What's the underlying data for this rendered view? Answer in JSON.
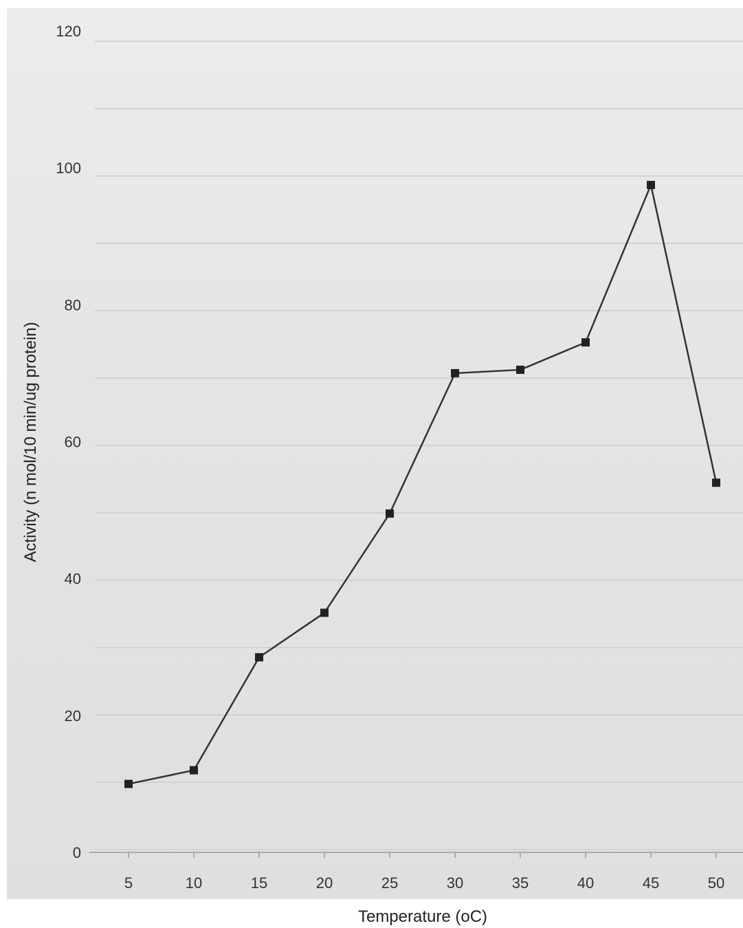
{
  "chart_data": {
    "type": "line",
    "title": "",
    "xlabel": "Temperature (oC)",
    "ylabel": "Activity (n mol/10 min/ug protein)",
    "categories": [
      "5",
      "10",
      "15",
      "20",
      "25",
      "30",
      "35",
      "40",
      "45",
      "50"
    ],
    "series": [
      {
        "values": [
          10,
          12,
          28.5,
          35,
          49.5,
          70,
          70.5,
          74.5,
          97.5,
          54
        ]
      }
    ],
    "ylim": [
      0,
      120
    ],
    "yticks": [
      0,
      20,
      40,
      60,
      80,
      100,
      120
    ],
    "grid": false,
    "legend": "none",
    "line_color": "#333333",
    "marker": "square"
  }
}
